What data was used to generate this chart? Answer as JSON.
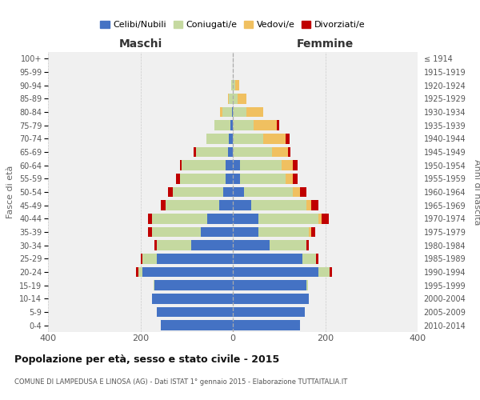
{
  "age_groups": [
    "0-4",
    "5-9",
    "10-14",
    "15-19",
    "20-24",
    "25-29",
    "30-34",
    "35-39",
    "40-44",
    "45-49",
    "50-54",
    "55-59",
    "60-64",
    "65-69",
    "70-74",
    "75-79",
    "80-84",
    "85-89",
    "90-94",
    "95-99",
    "100+"
  ],
  "birth_years": [
    "2010-2014",
    "2005-2009",
    "2000-2004",
    "1995-1999",
    "1990-1994",
    "1985-1989",
    "1980-1984",
    "1975-1979",
    "1970-1974",
    "1965-1969",
    "1960-1964",
    "1955-1959",
    "1950-1954",
    "1945-1949",
    "1940-1944",
    "1935-1939",
    "1930-1934",
    "1925-1929",
    "1920-1924",
    "1915-1919",
    "≤ 1914"
  ],
  "colors": {
    "celibi": "#4472C4",
    "coniugati": "#c5d9a0",
    "vedovi": "#f0c060",
    "divorziati": "#c00000"
  },
  "maschi": {
    "celibi": [
      155,
      165,
      175,
      170,
      195,
      165,
      90,
      70,
      55,
      30,
      20,
      15,
      15,
      10,
      8,
      5,
      2,
      0,
      0,
      0,
      0
    ],
    "coniugati": [
      0,
      0,
      0,
      2,
      10,
      30,
      75,
      105,
      120,
      115,
      110,
      100,
      95,
      70,
      50,
      35,
      20,
      8,
      3,
      0,
      0
    ],
    "vedovi": [
      0,
      0,
      0,
      0,
      0,
      0,
      0,
      0,
      0,
      0,
      0,
      0,
      0,
      0,
      0,
      0,
      5,
      3,
      0,
      0,
      0
    ],
    "divorziati": [
      0,
      0,
      0,
      0,
      5,
      5,
      5,
      8,
      8,
      10,
      10,
      8,
      5,
      5,
      0,
      0,
      0,
      0,
      0,
      0,
      0
    ]
  },
  "femmine": {
    "celibi": [
      145,
      155,
      165,
      160,
      185,
      150,
      80,
      55,
      55,
      40,
      25,
      15,
      15,
      0,
      0,
      0,
      0,
      0,
      0,
      0,
      0
    ],
    "coniugati": [
      0,
      0,
      0,
      2,
      25,
      30,
      80,
      110,
      130,
      120,
      105,
      100,
      90,
      85,
      65,
      45,
      30,
      10,
      5,
      0,
      0
    ],
    "vedovi": [
      0,
      0,
      0,
      0,
      0,
      0,
      0,
      5,
      8,
      10,
      15,
      15,
      25,
      35,
      50,
      50,
      35,
      20,
      8,
      0,
      0
    ],
    "divorziati": [
      0,
      0,
      0,
      0,
      5,
      5,
      5,
      8,
      15,
      15,
      15,
      10,
      10,
      5,
      8,
      5,
      0,
      0,
      0,
      0,
      0
    ]
  },
  "xlim": 400,
  "title": "Popolazione per età, sesso e stato civile - 2015",
  "subtitle": "COMUNE DI LAMPEDUSA E LINOSA (AG) - Dati ISTAT 1° gennaio 2015 - Elaborazione TUTTAITALIA.IT",
  "xlabel_left": "Maschi",
  "xlabel_right": "Femmine",
  "ylabel_left": "Fasce di età",
  "ylabel_right": "Anni di nascita",
  "legend_labels": [
    "Celibi/Nubili",
    "Coniugati/e",
    "Vedovi/e",
    "Divorziati/e"
  ],
  "background_color": "#ffffff",
  "plot_bg": "#f0f0f0",
  "bar_height": 0.75
}
